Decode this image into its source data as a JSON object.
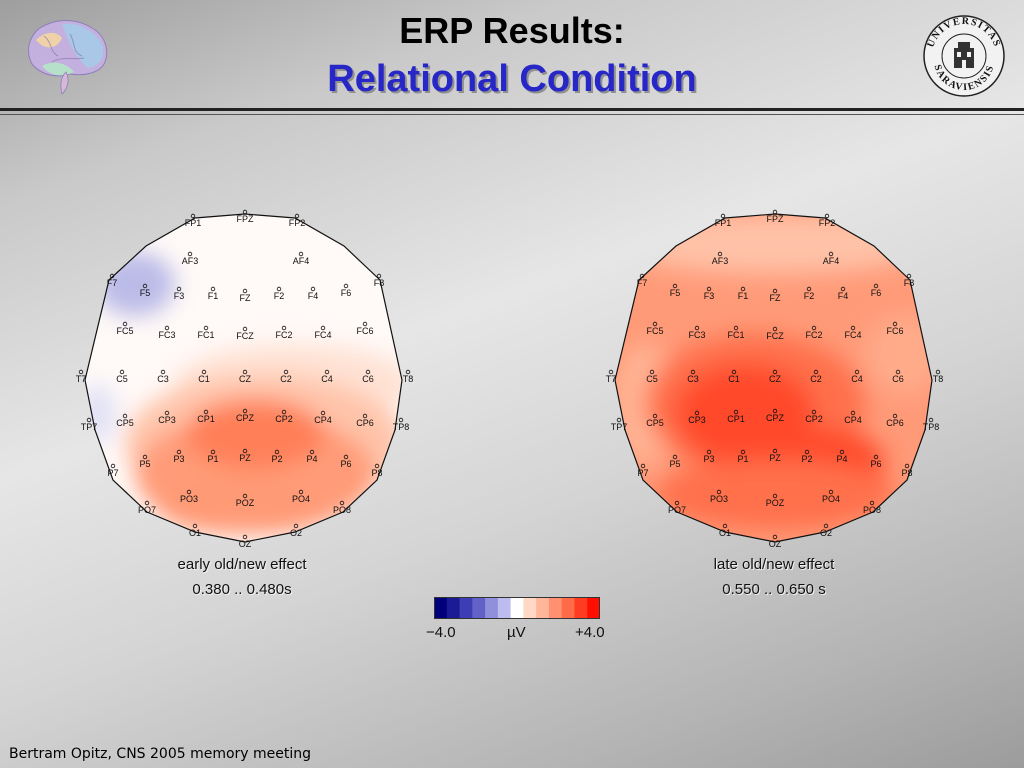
{
  "header": {
    "title_line1": "ERP Results:",
    "title_line2": "Relational Condition",
    "title2_color": "#2727c8",
    "logo_left": "brain-illustration",
    "seal_text": "UNIVERSITAS SARAVIENSIS"
  },
  "maps": [
    {
      "caption": "early old/new effect",
      "time_window": "0.380 .. 0.480s"
    },
    {
      "caption": "late old/new effect",
      "time_window": "0.550 .. 0.650 s"
    }
  ],
  "electrodes": [
    "FPZ",
    "FP1",
    "FP2",
    "AF3",
    "AF4",
    "F7",
    "F5",
    "F3",
    "F1",
    "FZ",
    "F2",
    "F4",
    "F6",
    "F8",
    "FC5",
    "FC3",
    "FC1",
    "FCZ",
    "FC2",
    "FC4",
    "FC6",
    "T7",
    "C5",
    "C3",
    "C1",
    "CZ",
    "C2",
    "C4",
    "C6",
    "T8",
    "TP7",
    "CP5",
    "CP3",
    "CP1",
    "CPZ",
    "CP2",
    "CP4",
    "CP6",
    "TP8",
    "P7",
    "P5",
    "P3",
    "P1",
    "PZ",
    "P2",
    "P4",
    "P6",
    "P8",
    "PO7",
    "PO3",
    "POZ",
    "PO4",
    "PO8",
    "O1",
    "OZ",
    "O2"
  ],
  "colorbar": {
    "min_label": "−4.0",
    "unit": "µV",
    "max_label": "+4.0",
    "min": -4.0,
    "max": 4.0,
    "colors": [
      "#00007a",
      "#1b1b96",
      "#3d3db4",
      "#6161c8",
      "#8f8fdc",
      "#bcbcef",
      "#ffffff",
      "#ffd9c6",
      "#ffb69a",
      "#ff9170",
      "#ff6a48",
      "#ff3c22",
      "#ff0f00"
    ]
  },
  "footer": "Bertram Opitz, CNS 2005 memory meeting"
}
